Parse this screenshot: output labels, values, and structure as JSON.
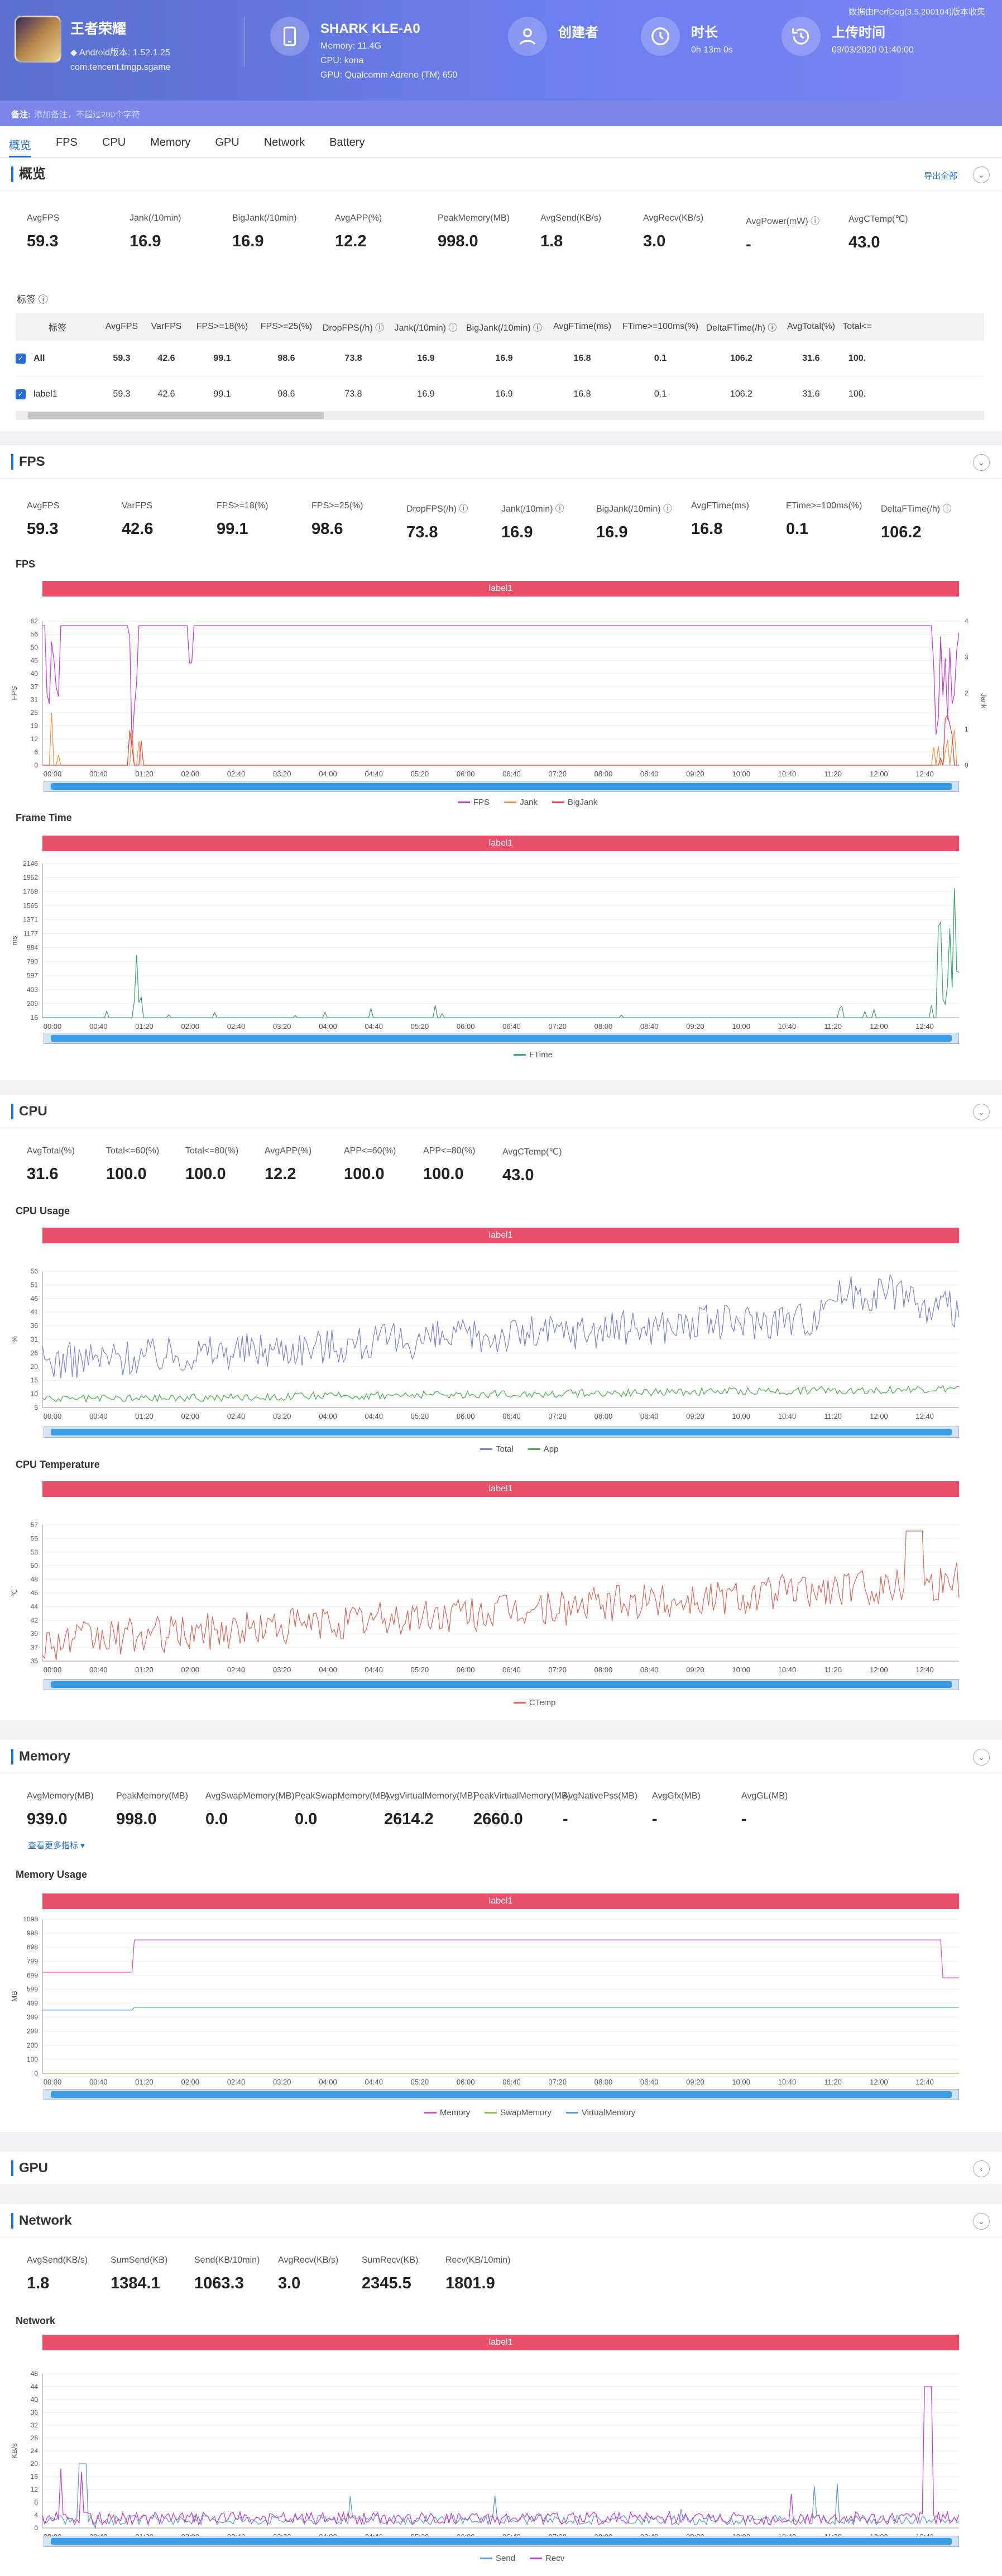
{
  "header": {
    "note": "数据由PerfDog(3.5.200104)版本收集",
    "game_title": "王者荣耀",
    "game_version": "◆ Android版本: 1.52.1.25",
    "game_package": "com.tencent.tmgp.sgame",
    "device_title": "SHARK KLE-A0",
    "device_memory": "Memory: 11.4G",
    "device_cpu": "CPU: kona",
    "device_gpu": "GPU: Qualcomm Adreno (TM) 650",
    "creator_title": "创建者",
    "duration_title": "时长",
    "duration_value": "0h 13m 0s",
    "upload_title": "上传时间",
    "upload_value": "03/03/2020 01:40:00"
  },
  "remark": {
    "label": "备注:",
    "placeholder": "添加备注，不超过200个字符"
  },
  "tabs": [
    "概览",
    "FPS",
    "CPU",
    "Memory",
    "GPU",
    "Network",
    "Battery"
  ],
  "overview": {
    "title": "概览",
    "export": "导出全部",
    "metrics": [
      {
        "l": "AvgFPS",
        "v": "59.3"
      },
      {
        "l": "Jank(/10min)",
        "v": "16.9"
      },
      {
        "l": "BigJank(/10min)",
        "v": "16.9"
      },
      {
        "l": "AvgAPP(%)",
        "v": "12.2"
      },
      {
        "l": "PeakMemory(MB)",
        "v": "998.0"
      },
      {
        "l": "AvgSend(KB/s)",
        "v": "1.8"
      },
      {
        "l": "AvgRecv(KB/s)",
        "v": "3.0"
      },
      {
        "l": "AvgPower(mW) ⓘ",
        "v": "-"
      },
      {
        "l": "AvgCTemp(℃)",
        "v": "43.0"
      }
    ],
    "label_title": "标签 ⓘ",
    "table_headers": [
      "标签",
      "AvgFPS",
      "VarFPS",
      "FPS>=18(%)",
      "FPS>=25(%)",
      "DropFPS(/h) ⓘ",
      "Jank(/10min) ⓘ",
      "BigJank(/10min) ⓘ",
      "AvgFTime(ms)",
      "FTime>=100ms(%)",
      "DeltaFTime(/h) ⓘ",
      "AvgTotal(%)",
      "Total<="
    ],
    "rows": [
      {
        "name": "All",
        "v": [
          "59.3",
          "42.6",
          "99.1",
          "98.6",
          "73.8",
          "16.9",
          "16.9",
          "16.8",
          "0.1",
          "106.2",
          "31.6",
          "100."
        ]
      },
      {
        "name": "label1",
        "v": [
          "59.3",
          "42.6",
          "99.1",
          "98.6",
          "73.8",
          "16.9",
          "16.9",
          "16.8",
          "0.1",
          "106.2",
          "31.6",
          "100."
        ]
      }
    ]
  },
  "fps": {
    "title": "FPS",
    "metrics": [
      {
        "l": "AvgFPS",
        "v": "59.3"
      },
      {
        "l": "VarFPS",
        "v": "42.6"
      },
      {
        "l": "FPS>=18(%)",
        "v": "99.1"
      },
      {
        "l": "FPS>=25(%)",
        "v": "98.6"
      },
      {
        "l": "DropFPS(/h) ⓘ",
        "v": "73.8"
      },
      {
        "l": "Jank(/10min) ⓘ",
        "v": "16.9"
      },
      {
        "l": "BigJank(/10min) ⓘ",
        "v": "16.9"
      },
      {
        "l": "AvgFTime(ms)",
        "v": "16.8"
      },
      {
        "l": "FTime>=100ms(%)",
        "v": "0.1"
      },
      {
        "l": "DeltaFTime(/h) ⓘ",
        "v": "106.2"
      }
    ]
  },
  "cpu": {
    "title": "CPU",
    "metrics": [
      {
        "l": "AvgTotal(%)",
        "v": "31.6"
      },
      {
        "l": "Total<=60(%)",
        "v": "100.0"
      },
      {
        "l": "Total<=80(%)",
        "v": "100.0"
      },
      {
        "l": "AvgAPP(%)",
        "v": "12.2"
      },
      {
        "l": "APP<=60(%)",
        "v": "100.0"
      },
      {
        "l": "APP<=80(%)",
        "v": "100.0"
      },
      {
        "l": "AvgCTemp(℃)",
        "v": "43.0"
      }
    ]
  },
  "memory": {
    "title": "Memory",
    "metrics": [
      {
        "l": "AvgMemory(MB)",
        "v": "939.0"
      },
      {
        "l": "PeakMemory(MB)",
        "v": "998.0"
      },
      {
        "l": "AvgSwapMemory(MB)",
        "v": "0.0"
      },
      {
        "l": "PeakSwapMemory(MB)",
        "v": "0.0"
      },
      {
        "l": "AvgVirtualMemory(MB)",
        "v": "2614.2"
      },
      {
        "l": "PeakVirtualMemory(MB)",
        "v": "2660.0"
      },
      {
        "l": "AvgNativePss(MB)",
        "v": "-"
      },
      {
        "l": "AvgGfx(MB)",
        "v": "-"
      },
      {
        "l": "AvgGL(MB)",
        "v": "-"
      }
    ],
    "more": "查看更多指标 ▾"
  },
  "gpu": {
    "title": "GPU"
  },
  "network": {
    "title": "Network",
    "metrics": [
      {
        "l": "AvgSend(KB/s)",
        "v": "1.8"
      },
      {
        "l": "SumSend(KB)",
        "v": "1384.1"
      },
      {
        "l": "Send(KB/10min)",
        "v": "1063.3"
      },
      {
        "l": "AvgRecv(KB/s)",
        "v": "3.0"
      },
      {
        "l": "SumRecv(KB)",
        "v": "2345.5"
      },
      {
        "l": "Recv(KB/10min)",
        "v": "1801.9"
      }
    ]
  },
  "colors": {
    "accent": "#1f6fd6",
    "label_bar": "#e8506a",
    "fps": "#c43bd8",
    "jank": "#f0954a",
    "bigjank": "#e84040",
    "ftime": "#3aa86a",
    "total": "#7c86d8",
    "app": "#4caf50",
    "ctemp": "#e06a5a",
    "memory": "#d84fc8",
    "swap": "#8bc34a",
    "virtual": "#5b9bd5",
    "send": "#5b9bd5",
    "recv": "#c43bd8"
  },
  "chart_data": [
    {
      "id": "fps",
      "type": "line",
      "title": "FPS",
      "label_bar": "label1",
      "ylabel": "FPS",
      "y2label": "Jank",
      "yticks": [
        "62",
        "56",
        "50",
        "45",
        "40",
        "37",
        "31",
        "25",
        "19",
        "12",
        "6",
        "0"
      ],
      "y2ticks": [
        "4",
        "3",
        "2",
        "1",
        "0"
      ],
      "ylim": [
        0,
        62
      ],
      "y2lim": [
        0,
        4
      ],
      "xticks": [
        "00:00",
        "00:40",
        "01:20",
        "02:00",
        "02:40",
        "03:20",
        "04:00",
        "04:40",
        "05:20",
        "06:00",
        "06:40",
        "07:20",
        "08:00",
        "08:40",
        "09:20",
        "10:00",
        "10:40",
        "11:20",
        "12:00",
        "12:40"
      ],
      "series": [
        {
          "name": "FPS",
          "base": 60
        },
        {
          "name": "Jank"
        },
        {
          "name": "BigJank"
        }
      ]
    },
    {
      "id": "ftime",
      "type": "line",
      "title": "Frame Time",
      "label_bar": "label1",
      "ylabel": "ms",
      "yticks": [
        "2146",
        "1952",
        "1758",
        "1565",
        "1371",
        "1177",
        "984",
        "790",
        "597",
        "403",
        "209",
        "16"
      ],
      "ylim": [
        16,
        2146
      ],
      "xticks": [
        "00:00",
        "00:40",
        "01:20",
        "02:00",
        "02:40",
        "03:20",
        "04:00",
        "04:40",
        "05:20",
        "06:00",
        "06:40",
        "07:20",
        "08:00",
        "08:40",
        "09:20",
        "10:00",
        "10:40",
        "11:20",
        "12:00",
        "12:40"
      ],
      "series": [
        {
          "name": "FTime"
        }
      ]
    },
    {
      "id": "cpuusage",
      "type": "line",
      "title": "CPU Usage",
      "label_bar": "label1",
      "ylabel": "%",
      "yticks": [
        "56",
        "51",
        "46",
        "41",
        "36",
        "31",
        "26",
        "20",
        "15",
        "10",
        "5"
      ],
      "ylim": [
        5,
        56
      ],
      "xticks": [
        "00:00",
        "00:40",
        "01:20",
        "02:00",
        "02:40",
        "03:20",
        "04:00",
        "04:40",
        "05:20",
        "06:00",
        "06:40",
        "07:20",
        "08:00",
        "08:40",
        "09:20",
        "10:00",
        "10:40",
        "11:20",
        "12:00",
        "12:40"
      ],
      "series": [
        {
          "name": "Total",
          "avg": 31.6
        },
        {
          "name": "App",
          "avg": 12.2
        }
      ]
    },
    {
      "id": "cputemp",
      "type": "line",
      "title": "CPU Temperature",
      "label_bar": "label1",
      "ylabel": "℃",
      "yticks": [
        "57",
        "55",
        "53",
        "50",
        "48",
        "46",
        "44",
        "42",
        "39",
        "37",
        "35"
      ],
      "ylim": [
        35,
        57
      ],
      "xticks": [
        "00:00",
        "00:40",
        "01:20",
        "02:00",
        "02:40",
        "03:20",
        "04:00",
        "04:40",
        "05:20",
        "06:00",
        "06:40",
        "07:20",
        "08:00",
        "08:40",
        "09:20",
        "10:00",
        "10:40",
        "11:20",
        "12:00",
        "12:40"
      ],
      "series": [
        {
          "name": "CTemp",
          "avg": 43.0
        }
      ]
    },
    {
      "id": "memusage",
      "type": "line",
      "title": "Memory Usage",
      "label_bar": "label1",
      "ylabel": "MB",
      "yticks": [
        "1098",
        "998",
        "898",
        "799",
        "699",
        "599",
        "499",
        "399",
        "299",
        "200",
        "100",
        "0"
      ],
      "ylim": [
        0,
        1098
      ],
      "xticks": [
        "00:00",
        "00:40",
        "01:20",
        "02:00",
        "02:40",
        "03:20",
        "04:00",
        "04:40",
        "05:20",
        "06:00",
        "06:40",
        "07:20",
        "08:00",
        "08:40",
        "09:20",
        "10:00",
        "10:40",
        "11:20",
        "12:00",
        "12:40"
      ],
      "series": [
        {
          "name": "Memory",
          "avg": 939
        },
        {
          "name": "SwapMemory",
          "avg": 0
        },
        {
          "name": "VirtualMemory"
        }
      ]
    },
    {
      "id": "net",
      "type": "line",
      "title": "Network",
      "label_bar": "label1",
      "ylabel": "KB/s",
      "yticks": [
        "48",
        "44",
        "40",
        "36",
        "32",
        "28",
        "24",
        "20",
        "16",
        "12",
        "8",
        "4",
        "0"
      ],
      "ylim": [
        0,
        48
      ],
      "xticks": [
        "00:00",
        "00:40",
        "01:20",
        "02:00",
        "02:40",
        "03:20",
        "04:00",
        "04:40",
        "05:20",
        "06:00",
        "06:40",
        "07:20",
        "08:00",
        "08:40",
        "09:20",
        "10:00",
        "10:40",
        "11:20",
        "12:00",
        "12:40"
      ],
      "series": [
        {
          "name": "Send",
          "avg": 1.8
        },
        {
          "name": "Recv",
          "avg": 3.0
        }
      ]
    }
  ]
}
